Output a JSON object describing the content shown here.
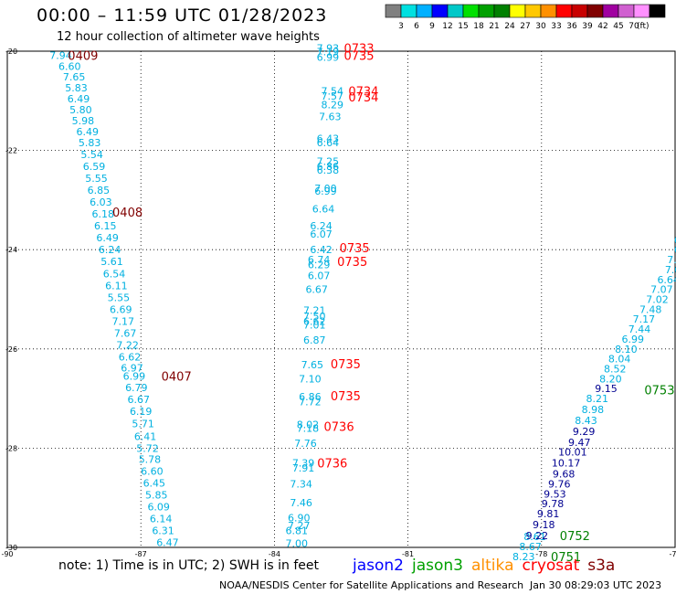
{
  "header": {
    "title": "00:00 – 11:59 UTC 01/28/2023",
    "subtitle": "12 hour collection of altimeter wave heights"
  },
  "colorbar": {
    "colors": [
      "#808080",
      "#00e0e0",
      "#00b0ff",
      "#0000ff",
      "#00c8c8",
      "#00e000",
      "#00a000",
      "#008000",
      "#ffff00",
      "#ffc800",
      "#ff9000",
      "#ff0000",
      "#c80000",
      "#800000",
      "#a000a0",
      "#d060d0",
      "#ff90ff",
      "#000000"
    ],
    "labels": [
      "3",
      "6",
      "9",
      "12",
      "15",
      "18",
      "21",
      "24",
      "27",
      "30",
      "33",
      "36",
      "39",
      "42",
      "45",
      "70"
    ],
    "unit": "(ft)"
  },
  "footer": {
    "note": "note:  1) Time is in UTC; 2) SWH is in feet",
    "credit": "NOAA/NESDIS Center for Satellite Applications and Research",
    "timestamp": "Jan 30 08:29:03 UTC 2023",
    "satellites": [
      {
        "name": "jason2",
        "color": "#0000ff"
      },
      {
        "name": "jason3",
        "color": "#00a000"
      },
      {
        "name": "altika",
        "color": "#ff9000"
      },
      {
        "name": "cryosat",
        "color": "#ff0000"
      },
      {
        "name": "s3a",
        "color": "#800000"
      }
    ]
  },
  "chart_data": {
    "type": "scatter",
    "xlim": [
      -90,
      -75
    ],
    "ylim": [
      -30,
      -20
    ],
    "x_ticks": [
      -90,
      -87,
      -84,
      -81,
      -78,
      -75
    ],
    "x_tick_labels": [
      "-90",
      "-87",
      "-84",
      "-81",
      "-78",
      "-75"
    ],
    "y_ticks": [
      -20,
      -22,
      -24,
      -26,
      -28,
      -30
    ],
    "y_tick_labels": [
      "-20",
      "-22",
      "-24",
      "-26",
      "-28",
      "-30"
    ],
    "grid": true,
    "color_cyan": "#00b0e0",
    "color_navy": "#000090",
    "series": [
      {
        "name": "s3a",
        "label_color": "#800000",
        "swh_color": "#00b0e0",
        "points": [
          {
            "lon": -88.8,
            "lat": -20.08,
            "swh": "7.94"
          },
          {
            "lon": -88.6,
            "lat": -20.3,
            "swh": "6.60"
          },
          {
            "lon": -88.5,
            "lat": -20.52,
            "swh": "7.65"
          },
          {
            "lon": -88.45,
            "lat": -20.74,
            "swh": "5.83"
          },
          {
            "lon": -88.4,
            "lat": -20.96,
            "swh": "6.49"
          },
          {
            "lon": -88.35,
            "lat": -21.18,
            "swh": "5.80"
          },
          {
            "lon": -88.3,
            "lat": -21.4,
            "swh": "5.98"
          },
          {
            "lon": -88.2,
            "lat": -21.62,
            "swh": "6.49"
          },
          {
            "lon": -88.15,
            "lat": -21.84,
            "swh": "5.83"
          },
          {
            "lon": -88.1,
            "lat": -22.08,
            "swh": "5.54"
          },
          {
            "lon": -88.05,
            "lat": -22.32,
            "swh": "6.59"
          },
          {
            "lon": -88.0,
            "lat": -22.56,
            "swh": "5.55"
          },
          {
            "lon": -87.95,
            "lat": -22.8,
            "swh": "6.85"
          },
          {
            "lon": -87.9,
            "lat": -23.04,
            "swh": "6.03"
          },
          {
            "lon": -87.85,
            "lat": -23.28,
            "swh": "6.18"
          },
          {
            "lon": -87.8,
            "lat": -23.52,
            "swh": "6.15"
          },
          {
            "lon": -87.75,
            "lat": -23.76,
            "swh": "6.49"
          },
          {
            "lon": -87.7,
            "lat": -24.0,
            "swh": "6.24"
          },
          {
            "lon": -87.65,
            "lat": -24.24,
            "swh": "5.61"
          },
          {
            "lon": -87.6,
            "lat": -24.48,
            "swh": "6.54"
          },
          {
            "lon": -87.55,
            "lat": -24.72,
            "swh": "6.11"
          },
          {
            "lon": -87.5,
            "lat": -24.96,
            "swh": "5.55"
          },
          {
            "lon": -87.45,
            "lat": -25.2,
            "swh": "6.69"
          },
          {
            "lon": -87.4,
            "lat": -25.44,
            "swh": "7.17"
          },
          {
            "lon": -87.35,
            "lat": -25.68,
            "swh": "7.67"
          },
          {
            "lon": -87.3,
            "lat": -25.92,
            "swh": "7.22"
          },
          {
            "lon": -87.25,
            "lat": -26.16,
            "swh": "6.62"
          },
          {
            "lon": -87.2,
            "lat": -26.38,
            "swh": "6.97"
          },
          {
            "lon": -87.15,
            "lat": -26.55,
            "swh": "6.99"
          },
          {
            "lon": -87.1,
            "lat": -26.78,
            "swh": "6.79"
          },
          {
            "lon": -87.05,
            "lat": -27.02,
            "swh": "6.67"
          },
          {
            "lon": -87.0,
            "lat": -27.26,
            "swh": "6.19"
          },
          {
            "lon": -86.95,
            "lat": -27.5,
            "swh": "5.71"
          },
          {
            "lon": -86.9,
            "lat": -27.76,
            "swh": "6.41"
          },
          {
            "lon": -86.85,
            "lat": -28.0,
            "swh": "5.72"
          },
          {
            "lon": -86.8,
            "lat": -28.22,
            "swh": "5.78"
          },
          {
            "lon": -86.75,
            "lat": -28.46,
            "swh": "6.60"
          },
          {
            "lon": -86.7,
            "lat": -28.7,
            "swh": "6.45"
          },
          {
            "lon": -86.65,
            "lat": -28.94,
            "swh": "5.85"
          },
          {
            "lon": -86.6,
            "lat": -29.18,
            "swh": "6.09"
          },
          {
            "lon": -86.55,
            "lat": -29.42,
            "swh": "6.14"
          },
          {
            "lon": -86.5,
            "lat": -29.66,
            "swh": "6.31"
          },
          {
            "lon": -86.4,
            "lat": -29.9,
            "swh": "6.47"
          }
        ],
        "passes": [
          {
            "label": "0409",
            "lon": -88.3,
            "lat": -20.08
          },
          {
            "label": "0408",
            "lon": -87.3,
            "lat": -23.24
          },
          {
            "label": "0407",
            "lon": -86.2,
            "lat": -26.55
          }
        ]
      },
      {
        "name": "cryosat",
        "label_color": "#ff0000",
        "swh_color": "#00b0e0",
        "points": [
          {
            "lon": -82.8,
            "lat": -19.94,
            "swh": "7.93"
          },
          {
            "lon": -82.8,
            "lat": -20.01,
            "swh": "7.19"
          },
          {
            "lon": -82.8,
            "lat": -20.12,
            "swh": "6.99"
          },
          {
            "lon": -82.7,
            "lat": -20.8,
            "swh": "7.54"
          },
          {
            "lon": -82.7,
            "lat": -20.9,
            "swh": "7.57"
          },
          {
            "lon": -82.7,
            "lat": -21.08,
            "swh": "8.29"
          },
          {
            "lon": -82.75,
            "lat": -21.32,
            "swh": "7.63"
          },
          {
            "lon": -82.8,
            "lat": -21.76,
            "swh": "6.43"
          },
          {
            "lon": -82.8,
            "lat": -21.84,
            "swh": "6.64"
          },
          {
            "lon": -82.8,
            "lat": -22.22,
            "swh": "7.25"
          },
          {
            "lon": -82.8,
            "lat": -22.32,
            "swh": "6.86"
          },
          {
            "lon": -82.8,
            "lat": -22.39,
            "swh": "6.38"
          },
          {
            "lon": -82.85,
            "lat": -22.76,
            "swh": "7.00"
          },
          {
            "lon": -82.85,
            "lat": -22.82,
            "swh": "6.99"
          },
          {
            "lon": -82.9,
            "lat": -23.18,
            "swh": "6.64"
          },
          {
            "lon": -82.95,
            "lat": -23.52,
            "swh": "6.24"
          },
          {
            "lon": -82.95,
            "lat": -23.68,
            "swh": "6.07"
          },
          {
            "lon": -82.95,
            "lat": -24.0,
            "swh": "6.42"
          },
          {
            "lon": -83.0,
            "lat": -24.2,
            "swh": "6.74"
          },
          {
            "lon": -83.0,
            "lat": -24.3,
            "swh": "6.29"
          },
          {
            "lon": -83.0,
            "lat": -24.52,
            "swh": "6.07"
          },
          {
            "lon": -83.05,
            "lat": -24.8,
            "swh": "6.67"
          },
          {
            "lon": -83.1,
            "lat": -25.22,
            "swh": "7.21"
          },
          {
            "lon": -83.1,
            "lat": -25.34,
            "swh": "7.50"
          },
          {
            "lon": -83.1,
            "lat": -25.44,
            "swh": "6.62"
          },
          {
            "lon": -83.1,
            "lat": -25.52,
            "swh": "7.01"
          },
          {
            "lon": -83.1,
            "lat": -25.82,
            "swh": "6.87"
          },
          {
            "lon": -83.15,
            "lat": -26.32,
            "swh": "7.65"
          },
          {
            "lon": -83.2,
            "lat": -26.6,
            "swh": "7.10"
          },
          {
            "lon": -83.2,
            "lat": -26.96,
            "swh": "6.86"
          },
          {
            "lon": -83.2,
            "lat": -27.06,
            "swh": "7.72"
          },
          {
            "lon": -83.25,
            "lat": -27.52,
            "swh": "8.02"
          },
          {
            "lon": -83.25,
            "lat": -27.6,
            "swh": "7.18"
          },
          {
            "lon": -83.3,
            "lat": -27.9,
            "swh": "7.76"
          },
          {
            "lon": -83.35,
            "lat": -28.3,
            "swh": "7.39"
          },
          {
            "lon": -83.35,
            "lat": -28.4,
            "swh": "7.91"
          },
          {
            "lon": -83.4,
            "lat": -28.72,
            "swh": "7.34"
          },
          {
            "lon": -83.4,
            "lat": -29.1,
            "swh": "7.46"
          },
          {
            "lon": -83.45,
            "lat": -29.4,
            "swh": "6.90"
          },
          {
            "lon": -83.45,
            "lat": -29.56,
            "swh": "7.27"
          },
          {
            "lon": -83.5,
            "lat": -29.66,
            "swh": "6.81"
          },
          {
            "lon": -83.5,
            "lat": -29.92,
            "swh": "7.00"
          }
        ],
        "passes": [
          {
            "label": "0733",
            "lon": -82.1,
            "lat": -19.94
          },
          {
            "label": "0735",
            "lon": -82.1,
            "lat": -20.08
          },
          {
            "label": "0734",
            "lon": -82.0,
            "lat": -20.8
          },
          {
            "label": "0734",
            "lon": -82.0,
            "lat": -20.92
          },
          {
            "lon": -82.2,
            "lat": -23.96,
            "label": "0735"
          },
          {
            "lon": -82.25,
            "lat": -24.24,
            "label": "0735"
          },
          {
            "lon": -82.4,
            "lat": -26.3,
            "label": "0735"
          },
          {
            "lon": -82.4,
            "lat": -26.94,
            "label": "0735"
          },
          {
            "lon": -82.55,
            "lat": -27.56,
            "label": "0736"
          },
          {
            "lon": -82.7,
            "lat": -28.3,
            "label": "0736"
          }
        ]
      },
      {
        "name": "jason3",
        "label_color": "#008000",
        "swh_color": "#00b0e0",
        "points": [
          {
            "lon": -74.95,
            "lat": -23.8,
            "swh": "6"
          },
          {
            "lon": -74.95,
            "lat": -24.0,
            "swh": "6"
          },
          {
            "lon": -75.0,
            "lat": -24.2,
            "swh": "7.2"
          },
          {
            "lon": -75.05,
            "lat": -24.4,
            "swh": "7.0"
          },
          {
            "lon": -75.15,
            "lat": -24.6,
            "swh": "6.64"
          },
          {
            "lon": -75.3,
            "lat": -24.8,
            "swh": "7.07"
          },
          {
            "lon": -75.4,
            "lat": -25.0,
            "swh": "7.02"
          },
          {
            "lon": -75.55,
            "lat": -25.2,
            "swh": "7.48"
          },
          {
            "lon": -75.7,
            "lat": -25.4,
            "swh": "7.17"
          },
          {
            "lon": -75.8,
            "lat": -25.6,
            "swh": "7.44"
          },
          {
            "lon": -75.95,
            "lat": -25.8,
            "swh": "6.99"
          },
          {
            "lon": -76.1,
            "lat": -26.0,
            "swh": "8.10"
          },
          {
            "lon": -76.25,
            "lat": -26.2,
            "swh": "8.04"
          },
          {
            "lon": -76.35,
            "lat": -26.4,
            "swh": "8.52"
          },
          {
            "lon": -76.45,
            "lat": -26.6,
            "swh": "8.20"
          },
          {
            "lon": -76.75,
            "lat": -27.0,
            "swh": "8.21"
          },
          {
            "lon": -76.85,
            "lat": -27.22,
            "swh": "8.98"
          },
          {
            "lon": -77.0,
            "lat": -27.44,
            "swh": "8.43"
          },
          {
            "lon": -78.15,
            "lat": -29.78,
            "swh": "8.61"
          },
          {
            "lon": -78.25,
            "lat": -29.98,
            "swh": "8.67"
          },
          {
            "lon": -78.4,
            "lat": -30.18,
            "swh": "8.23"
          }
        ],
        "passes": [
          {
            "label": "0753",
            "lon": -75.35,
            "lat": -26.82
          },
          {
            "label": "0752",
            "lon": -77.25,
            "lat": -29.76
          },
          {
            "label": "0751",
            "lon": -77.45,
            "lat": -30.18
          }
        ]
      },
      {
        "name": "jason2",
        "label_color": "#0000ff",
        "swh_color": "#000090",
        "points": [
          {
            "lon": -76.55,
            "lat": -26.8,
            "swh": "9.15"
          },
          {
            "lon": -77.05,
            "lat": -27.66,
            "swh": "9.29"
          },
          {
            "lon": -77.15,
            "lat": -27.88,
            "swh": "9.47"
          },
          {
            "lon": -77.3,
            "lat": -28.08,
            "swh": "10.01"
          },
          {
            "lon": -77.45,
            "lat": -28.3,
            "swh": "10.17"
          },
          {
            "lon": -77.5,
            "lat": -28.52,
            "swh": "9.68"
          },
          {
            "lon": -77.6,
            "lat": -28.72,
            "swh": "9.76"
          },
          {
            "lon": -77.7,
            "lat": -28.92,
            "swh": "9.53"
          },
          {
            "lon": -77.75,
            "lat": -29.12,
            "swh": "9.78"
          },
          {
            "lon": -77.85,
            "lat": -29.32,
            "swh": "9.81"
          },
          {
            "lon": -77.95,
            "lat": -29.54,
            "swh": "9.18"
          },
          {
            "lon": -78.1,
            "lat": -29.76,
            "swh": "9.22"
          }
        ],
        "passes": []
      }
    ]
  }
}
